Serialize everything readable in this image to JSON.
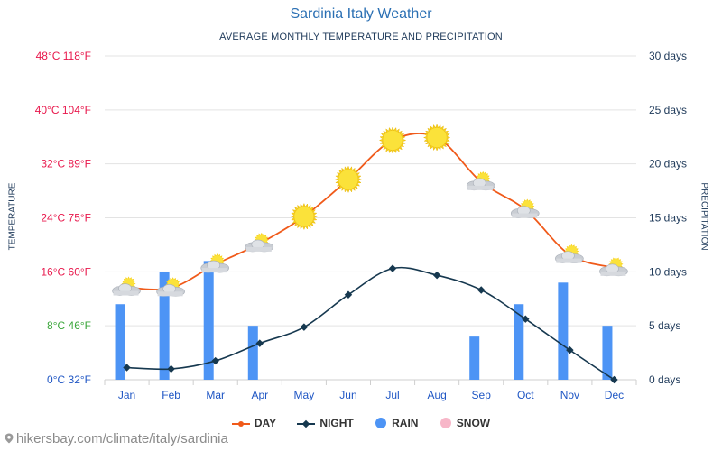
{
  "header": {
    "title": "Sardinia Italy Weather",
    "subtitle": "AVERAGE MONTHLY TEMPERATURE AND PRECIPITATION"
  },
  "watermark": "hikersbay.com/climate/italy/sardinia",
  "colors": {
    "day": "#f05a1a",
    "night": "#16384f",
    "rain": "#4d94f5",
    "snow": "#f7b6c8",
    "left_tick_red": "#e8184c",
    "left_tick_green": "#3aa63a",
    "left_tick_blue": "#1f56c4",
    "right_tick": "#1f3a5a",
    "gridline": "#e3e3e3"
  },
  "legend": {
    "day": "DAY",
    "night": "NIGHT",
    "rain": "RAIN",
    "snow": "SNOW"
  },
  "chart_data": {
    "type": "line",
    "title": "Sardinia Italy Weather",
    "subtitle": "AVERAGE MONTHLY TEMPERATURE AND PRECIPITATION",
    "ylabel": "TEMPERATURE",
    "ylabel_right": "PRECIPITATION",
    "categories": [
      "Jan",
      "Feb",
      "Mar",
      "Apr",
      "May",
      "Jun",
      "Jul",
      "Aug",
      "Sep",
      "Oct",
      "Nov",
      "Dec"
    ],
    "ylim": [
      0,
      48
    ],
    "ylim_right": [
      0,
      30
    ],
    "left_ticks": [
      {
        "value": 0,
        "label": "0°C 32°F",
        "color": "blue"
      },
      {
        "value": 8,
        "label": "8°C 46°F",
        "color": "green"
      },
      {
        "value": 16,
        "label": "16°C 60°F",
        "color": "red"
      },
      {
        "value": 24,
        "label": "24°C 75°F",
        "color": "red"
      },
      {
        "value": 32,
        "label": "32°C 89°F",
        "color": "red"
      },
      {
        "value": 40,
        "label": "40°C 104°F",
        "color": "red"
      },
      {
        "value": 48,
        "label": "48°C 118°F",
        "color": "red"
      }
    ],
    "right_ticks": [
      {
        "value": 0,
        "label": "0 days"
      },
      {
        "value": 5,
        "label": "5 days"
      },
      {
        "value": 10,
        "label": "10 days"
      },
      {
        "value": 15,
        "label": "15 days"
      },
      {
        "value": 20,
        "label": "20 days"
      },
      {
        "value": 25,
        "label": "25 days"
      },
      {
        "value": 30,
        "label": "30 days"
      }
    ],
    "series": [
      {
        "name": "DAY",
        "axis": "left",
        "values": [
          13.7,
          13.6,
          17.1,
          20.2,
          24.2,
          29.7,
          35.5,
          35.9,
          29.3,
          25.2,
          18.5,
          16.6
        ]
      },
      {
        "name": "NIGHT",
        "axis": "left",
        "values": [
          1.8,
          1.6,
          2.8,
          5.4,
          7.8,
          12.6,
          16.5,
          15.5,
          13.3,
          9.0,
          4.4,
          0.0
        ]
      },
      {
        "name": "RAIN",
        "axis": "right",
        "type": "bar",
        "values": [
          7,
          10,
          11,
          5,
          0,
          0,
          0,
          0,
          4,
          7,
          9,
          5
        ]
      },
      {
        "name": "SNOW",
        "axis": "right",
        "type": "bar",
        "values": [
          0,
          0,
          0,
          0,
          0,
          0,
          0,
          0,
          0,
          0,
          0,
          0
        ]
      }
    ],
    "weather_icons": [
      "partly-cloudy",
      "partly-cloudy",
      "partly-cloudy",
      "partly-cloudy",
      "sun",
      "sun",
      "sun",
      "sun",
      "partly-cloudy",
      "partly-cloudy",
      "partly-cloudy",
      "partly-cloudy"
    ],
    "grid": true,
    "legend_position": "bottom"
  }
}
